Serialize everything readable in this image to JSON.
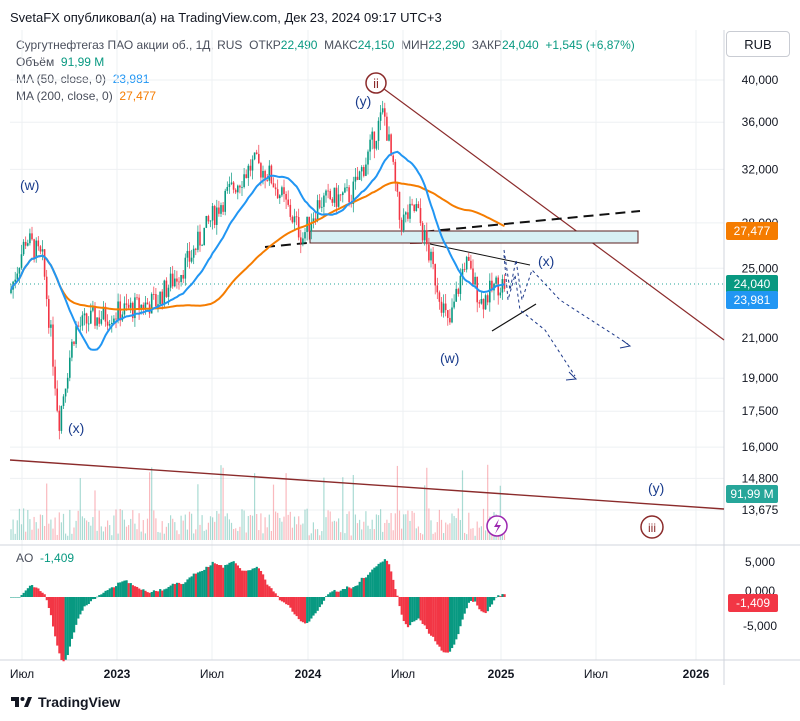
{
  "header": {
    "publisher_line": "SvetaFX опубликовал(а) на TradingView.com, Дек 23, 2024 09:17 UTC+3"
  },
  "legend": {
    "symbol": "Сургутнефтегаз ПАО акции об., 1Д, RUS",
    "open_label": "ОТКР",
    "open": "22,490",
    "high_label": "МАКС",
    "high": "24,150",
    "low_label": "МИН",
    "low": "22,290",
    "close_label": "ЗАКР",
    "close": "24,040",
    "change": "+1,545 (+6,87%)",
    "volume_label": "Объём",
    "volume": "91,99 M",
    "ma50_label": "MA (50, close, 0)",
    "ma50": "23,981",
    "ma200_label": "MA (200, close, 0)",
    "ma200": "27,477"
  },
  "currency_button": "RUB",
  "ao": {
    "label": "AO",
    "value": "-1,409"
  },
  "footer": {
    "brand": "TradingView"
  },
  "colors": {
    "up": "#089981",
    "down": "#f23645",
    "ma50": "#2196f3",
    "ma200": "#f57c00",
    "trend": "#8b2b2b",
    "wave": "#1a3c8c",
    "grid": "#eef0f3",
    "last": "#26a69a"
  },
  "chart_data": {
    "type": "candlestick",
    "scale": "log",
    "ylim": [
      13000,
      42000
    ],
    "x_axis_labels": [
      "Июл",
      "2023",
      "Июл",
      "2024",
      "Июл",
      "2025",
      "Июл",
      "2026"
    ],
    "price_axis_labels": [
      "40,000",
      "36,000",
      "32,000",
      "28,000",
      "25,000",
      "21,000",
      "19,000",
      "17,500",
      "16,000",
      "14,800",
      "13,675"
    ],
    "ao_axis_labels": [
      "5,000",
      "0,000",
      "-5,000"
    ],
    "last_price": {
      "close": "24,040",
      "ma200": "27,477",
      "ma50": "23,981",
      "volume": "91,99 M",
      "ao": "-1,409"
    },
    "price_path_points": [
      {
        "t": "2022-06",
        "p": 23500
      },
      {
        "t": "2022-07",
        "p": 27000
      },
      {
        "t": "2022-08",
        "p": 25500
      },
      {
        "t": "2022-09",
        "p": 17000
      },
      {
        "t": "2022-10",
        "p": 21500
      },
      {
        "t": "2022-11",
        "p": 22000
      },
      {
        "t": "2023-01",
        "p": 22500
      },
      {
        "t": "2023-03",
        "p": 23000
      },
      {
        "t": "2023-05",
        "p": 25500
      },
      {
        "t": "2023-07",
        "p": 29500
      },
      {
        "t": "2023-09",
        "p": 32500
      },
      {
        "t": "2023-10",
        "p": 31500
      },
      {
        "t": "2023-12",
        "p": 27000
      },
      {
        "t": "2024-01",
        "p": 29500
      },
      {
        "t": "2024-03",
        "p": 30000
      },
      {
        "t": "2024-04",
        "p": 33000
      },
      {
        "t": "2024-05",
        "p": 37000
      },
      {
        "t": "2024-06",
        "p": 28000
      },
      {
        "t": "2024-07",
        "p": 29000
      },
      {
        "t": "2024-08",
        "p": 25000
      },
      {
        "t": "2024-09",
        "p": 21500
      },
      {
        "t": "2024-10",
        "p": 25500
      },
      {
        "t": "2024-11",
        "p": 23000
      },
      {
        "t": "2024-12",
        "p": 24040
      }
    ],
    "annotations": [
      "(w)",
      "(x)",
      "(y)",
      "ii",
      "(w)",
      "(x)",
      "(y)",
      "iii"
    ]
  }
}
